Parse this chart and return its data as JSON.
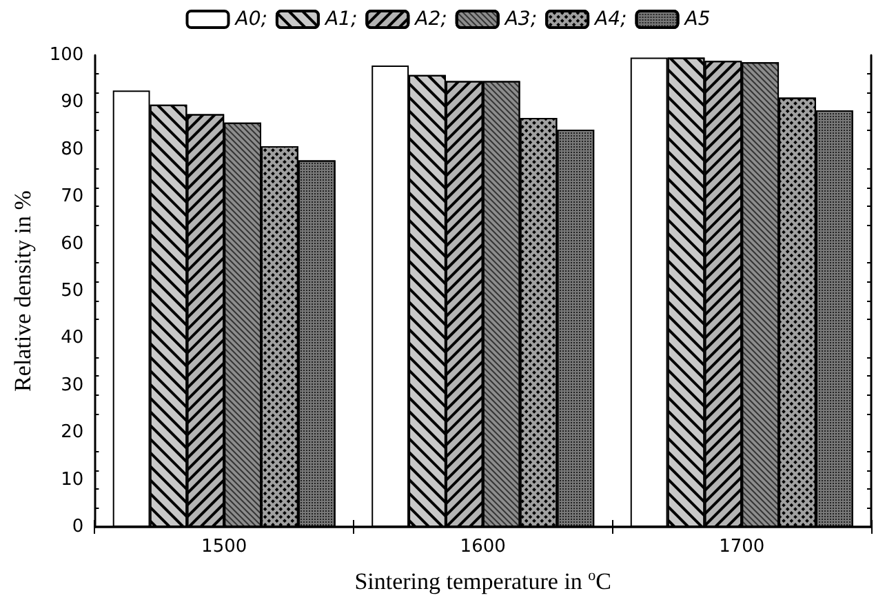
{
  "chart_data": {
    "type": "bar",
    "xlabel": "Sintering temperature in $^{o}$C",
    "ylabel": "Relative density in %",
    "categories": [
      "1500",
      "1600",
      "1700"
    ],
    "series": [
      {
        "name": "A0;",
        "color": "#ffffff",
        "values": [
          92.5,
          97.8,
          99.5
        ]
      },
      {
        "name": "A1;",
        "color": "#c8c8c8",
        "values": [
          89.5,
          95.8,
          99.5
        ]
      },
      {
        "name": "A2;",
        "color": "#b4b4b4",
        "values": [
          87.5,
          94.5,
          98.8
        ]
      },
      {
        "name": "A3;",
        "color": "#8c8c8c",
        "values": [
          85.7,
          94.5,
          98.5
        ]
      },
      {
        "name": "A4;",
        "color": "#a0a0a0",
        "values": [
          80.7,
          86.7,
          91
        ]
      },
      {
        "name": "A5",
        "color": "#787878",
        "values": [
          77.7,
          84.2,
          88.3
        ]
      }
    ],
    "ylim": [
      0,
      100
    ],
    "yticks": [
      0,
      10,
      20,
      30,
      40,
      50,
      60,
      70,
      80,
      90,
      100
    ],
    "grid": false,
    "legend": "top"
  }
}
